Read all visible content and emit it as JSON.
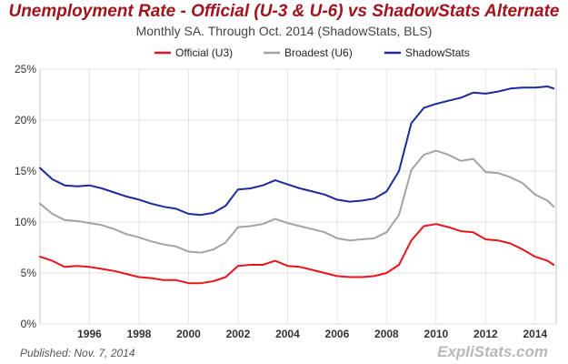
{
  "chart_data": {
    "type": "line",
    "title": "Unemployment Rate - Official (U-3 & U-6) vs ShadowStats Alternate",
    "subtitle": "Monthly SA. Through Oct. 2014  (ShadowStats, BLS)",
    "xlabel": "",
    "ylabel": "",
    "xlim": [
      1994.0,
      2014.85
    ],
    "ylim": [
      0,
      25
    ],
    "x_ticks": [
      1996,
      1998,
      2000,
      2002,
      2004,
      2006,
      2008,
      2010,
      2012,
      2014
    ],
    "y_ticks": [
      "0%",
      "5%",
      "10%",
      "15%",
      "20%",
      "25%"
    ],
    "grid": true,
    "legend_position": "top",
    "series": [
      {
        "name": "Official (U3)",
        "color": "#e8141c",
        "x": [
          1994.0,
          1994.5,
          1995.0,
          1995.5,
          1996.0,
          1996.5,
          1997.0,
          1997.5,
          1998.0,
          1998.5,
          1999.0,
          1999.5,
          2000.0,
          2000.5,
          2001.0,
          2001.5,
          2002.0,
          2002.5,
          2003.0,
          2003.5,
          2004.0,
          2004.5,
          2005.0,
          2005.5,
          2006.0,
          2006.5,
          2007.0,
          2007.5,
          2008.0,
          2008.5,
          2009.0,
          2009.5,
          2010.0,
          2010.5,
          2011.0,
          2011.5,
          2012.0,
          2012.5,
          2013.0,
          2013.5,
          2014.0,
          2014.5,
          2014.75
        ],
        "values": [
          6.6,
          6.2,
          5.6,
          5.7,
          5.6,
          5.4,
          5.2,
          4.9,
          4.6,
          4.5,
          4.3,
          4.3,
          4.0,
          4.0,
          4.2,
          4.6,
          5.7,
          5.8,
          5.8,
          6.2,
          5.7,
          5.6,
          5.3,
          5.0,
          4.7,
          4.6,
          4.6,
          4.7,
          5.0,
          5.8,
          8.2,
          9.6,
          9.8,
          9.5,
          9.1,
          9.0,
          8.3,
          8.2,
          7.9,
          7.3,
          6.6,
          6.2,
          5.8
        ]
      },
      {
        "name": "Broadest (U6)",
        "color": "#a3a3a3",
        "x": [
          1994.0,
          1994.5,
          1995.0,
          1995.5,
          1996.0,
          1996.5,
          1997.0,
          1997.5,
          1998.0,
          1998.5,
          1999.0,
          1999.5,
          2000.0,
          2000.5,
          2001.0,
          2001.5,
          2002.0,
          2002.5,
          2003.0,
          2003.5,
          2004.0,
          2004.5,
          2005.0,
          2005.5,
          2006.0,
          2006.5,
          2007.0,
          2007.5,
          2008.0,
          2008.5,
          2009.0,
          2009.5,
          2010.0,
          2010.5,
          2011.0,
          2011.5,
          2012.0,
          2012.5,
          2013.0,
          2013.5,
          2014.0,
          2014.5,
          2014.75
        ],
        "values": [
          11.8,
          10.8,
          10.2,
          10.1,
          9.9,
          9.7,
          9.3,
          8.8,
          8.5,
          8.1,
          7.8,
          7.6,
          7.1,
          7.0,
          7.3,
          8.0,
          9.5,
          9.6,
          9.8,
          10.3,
          9.9,
          9.6,
          9.3,
          9.0,
          8.4,
          8.2,
          8.3,
          8.4,
          9.0,
          10.7,
          15.1,
          16.6,
          17.0,
          16.6,
          16.0,
          16.2,
          14.9,
          14.8,
          14.4,
          13.8,
          12.7,
          12.1,
          11.5
        ]
      },
      {
        "name": "ShadowStats",
        "color": "#1c2a9c",
        "x": [
          1994.0,
          1994.5,
          1995.0,
          1995.5,
          1996.0,
          1996.5,
          1997.0,
          1997.5,
          1998.0,
          1998.5,
          1999.0,
          1999.5,
          2000.0,
          2000.5,
          2001.0,
          2001.5,
          2002.0,
          2002.5,
          2003.0,
          2003.5,
          2004.0,
          2004.5,
          2005.0,
          2005.5,
          2006.0,
          2006.5,
          2007.0,
          2007.5,
          2008.0,
          2008.5,
          2009.0,
          2009.5,
          2010.0,
          2010.5,
          2011.0,
          2011.5,
          2012.0,
          2012.5,
          2013.0,
          2013.5,
          2014.0,
          2014.5,
          2014.75
        ],
        "values": [
          15.3,
          14.2,
          13.6,
          13.5,
          13.6,
          13.3,
          12.9,
          12.5,
          12.2,
          11.8,
          11.5,
          11.3,
          10.8,
          10.7,
          10.9,
          11.6,
          13.2,
          13.3,
          13.6,
          14.1,
          13.7,
          13.3,
          13.0,
          12.7,
          12.2,
          12.0,
          12.1,
          12.3,
          13.0,
          15.0,
          19.7,
          21.2,
          21.6,
          21.9,
          22.2,
          22.7,
          22.6,
          22.8,
          23.1,
          23.2,
          23.2,
          23.3,
          23.1
        ]
      }
    ]
  },
  "footer": {
    "published": "Published: Nov. 7, 2014",
    "brand": "ExpliStats.com"
  }
}
